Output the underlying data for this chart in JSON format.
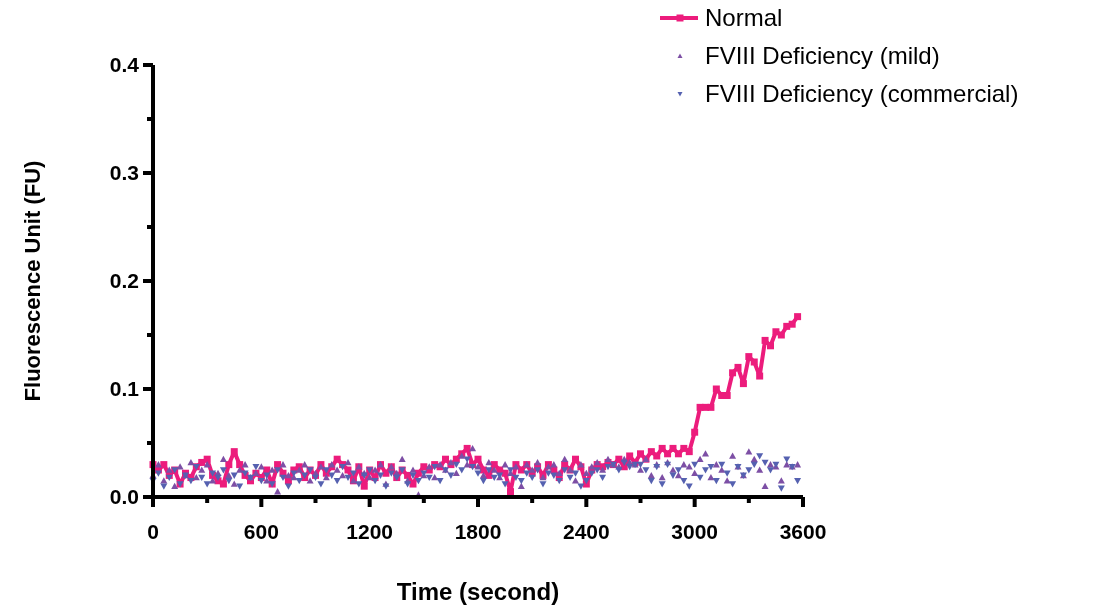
{
  "chart_data": {
    "type": "line",
    "xlabel": "Time (second)",
    "ylabel": "Fluorescence Unit (FU)",
    "xlim": [
      0,
      3600
    ],
    "ylim": [
      0,
      0.4
    ],
    "xticks": [
      0,
      {
        "value": 300,
        "label": null
      },
      600,
      {
        "value": 900,
        "label": null
      },
      1200,
      {
        "value": 1500,
        "label": null
      },
      1800,
      {
        "value": 2100,
        "label": null
      },
      2400,
      {
        "value": 2700,
        "label": null
      },
      3000,
      {
        "value": 3300,
        "label": null
      },
      3600
    ],
    "yticks": [
      {
        "value": 0,
        "label": "0.0"
      },
      {
        "value": 0.05,
        "label": null
      },
      0.1,
      {
        "value": 0.15,
        "label": null
      },
      0.2,
      {
        "value": 0.25,
        "label": null
      },
      0.3,
      {
        "value": 0.35,
        "label": null
      },
      0.4
    ],
    "grid": false,
    "legend": "top right",
    "x": [
      0,
      30,
      60,
      90,
      120,
      150,
      180,
      210,
      240,
      270,
      300,
      330,
      360,
      390,
      420,
      450,
      480,
      510,
      540,
      570,
      600,
      630,
      660,
      690,
      720,
      750,
      780,
      810,
      840,
      870,
      900,
      930,
      960,
      990,
      1020,
      1050,
      1080,
      1110,
      1140,
      1170,
      1200,
      1230,
      1260,
      1290,
      1320,
      1350,
      1380,
      1410,
      1440,
      1470,
      1500,
      1530,
      1560,
      1590,
      1620,
      1650,
      1680,
      1710,
      1740,
      1770,
      1800,
      1830,
      1860,
      1890,
      1920,
      1950,
      1980,
      2010,
      2040,
      2070,
      2100,
      2130,
      2160,
      2190,
      2220,
      2250,
      2280,
      2310,
      2340,
      2370,
      2400,
      2430,
      2460,
      2490,
      2520,
      2550,
      2580,
      2610,
      2640,
      2670,
      2700,
      2730,
      2760,
      2790,
      2820,
      2850,
      2880,
      2910,
      2940,
      2970,
      3000,
      3030,
      3060,
      3090,
      3120,
      3150,
      3180,
      3210,
      3240,
      3270,
      3300,
      3330,
      3360,
      3390,
      3420,
      3450,
      3480,
      3510,
      3540,
      3570
    ],
    "series": [
      {
        "name": "Normal",
        "marker": "square",
        "line_style": "solid",
        "color": "#ec1c7c",
        "values": [
          0.03,
          0.025,
          0.03,
          0.02,
          0.025,
          0.012,
          0.022,
          0.018,
          0.028,
          0.032,
          0.035,
          0.02,
          0.015,
          0.012,
          0.03,
          0.042,
          0.03,
          0.02,
          0.015,
          0.022,
          0.018,
          0.025,
          0.012,
          0.03,
          0.022,
          0.015,
          0.025,
          0.028,
          0.018,
          0.025,
          0.02,
          0.03,
          0.022,
          0.028,
          0.035,
          0.03,
          0.025,
          0.015,
          0.028,
          0.01,
          0.025,
          0.018,
          0.03,
          0.022,
          0.028,
          0.018,
          0.025,
          0.02,
          0.012,
          0.022,
          0.028,
          0.025,
          0.03,
          0.028,
          0.035,
          0.03,
          0.035,
          0.04,
          0.045,
          0.03,
          0.035,
          0.025,
          0.02,
          0.03,
          0.025,
          0.022,
          0.005,
          0.03,
          0.025,
          0.03,
          0.022,
          0.028,
          0.02,
          0.03,
          0.025,
          0.018,
          0.03,
          0.025,
          0.035,
          0.028,
          0.012,
          0.025,
          0.03,
          0.028,
          0.032,
          0.03,
          0.035,
          0.028,
          0.038,
          0.032,
          0.04,
          0.035,
          0.042,
          0.038,
          0.045,
          0.04,
          0.045,
          0.04,
          0.045,
          0.042,
          0.06,
          0.083,
          0.083,
          0.083,
          0.1,
          0.094,
          0.094,
          0.115,
          0.12,
          0.105,
          0.13,
          0.125,
          0.112,
          0.145,
          0.14,
          0.153,
          0.15,
          0.158,
          0.16,
          0.167
        ]
      },
      {
        "name": "FVIII Deficiency (mild)",
        "type": "scatter",
        "marker": "triangle",
        "color": "#7d4fa5",
        "values": [
          0.02,
          0.03,
          0.015,
          0.025,
          0.01,
          0.028,
          0.02,
          0.032,
          0.018,
          0.025,
          0.03,
          0.015,
          0.022,
          0.035,
          0.02,
          0.012,
          0.025,
          0.03,
          0.018,
          0.022,
          0.028,
          0.015,
          0.025,
          0.005,
          0.03,
          0.02,
          0.018,
          0.025,
          0.03,
          0.015,
          0.022,
          0.028,
          0.018,
          0.03,
          0.025,
          0.02,
          0.032,
          0.015,
          0.028,
          0.022,
          0.018,
          0.025,
          0.03,
          0.012,
          0.028,
          0.022,
          0.035,
          0.015,
          0.025,
          0.002,
          0.02,
          0.028,
          0.018,
          0.03,
          0.025,
          0.032,
          0.022,
          0.038,
          0.03,
          0.045,
          0.028,
          0.02,
          0.032,
          0.025,
          0.018,
          0.03,
          0.022,
          0.028,
          0.01,
          0.03,
          0.025,
          0.032,
          0.018,
          0.028,
          0.03,
          0.022,
          0.035,
          0.025,
          0.015,
          0.03,
          0.022,
          0.028,
          0.032,
          0.025,
          0.035,
          0.03,
          0.028,
          0.035,
          0.032,
          0.03,
          0.025,
          0.035,
          0.02,
          0.03,
          0.018,
          0.032,
          0.025,
          0.02,
          0.03,
          0.028,
          0.022,
          0.035,
          0.04,
          0.018,
          0.03,
          0.025,
          0.015,
          0.038,
          0.028,
          0.02,
          0.042,
          0.035,
          0.025,
          0.01,
          0.03,
          0.028,
          0.015,
          0.03,
          0.028,
          0.03
        ]
      },
      {
        "name": "FVIII Deficiency (commercial)",
        "type": "scatter",
        "marker": "triangle-down",
        "color": "#5561b0",
        "values": [
          0.015,
          0.022,
          0.01,
          0.018,
          0.025,
          0.012,
          0.02,
          0.015,
          0.028,
          0.018,
          0.012,
          0.022,
          0.018,
          0.025,
          0.015,
          0.02,
          0.01,
          0.022,
          0.018,
          0.028,
          0.015,
          0.02,
          0.012,
          0.025,
          0.018,
          0.01,
          0.022,
          0.015,
          0.02,
          0.025,
          0.018,
          0.012,
          0.025,
          0.02,
          0.015,
          0.028,
          0.018,
          0.022,
          0.012,
          0.02,
          0.025,
          0.015,
          0.02,
          0.01,
          0.022,
          0.018,
          0.025,
          0.012,
          0.02,
          0.015,
          0.022,
          0.018,
          0.028,
          0.015,
          0.025,
          0.02,
          0.03,
          0.025,
          0.035,
          0.028,
          0.022,
          0.015,
          0.025,
          0.018,
          0.02,
          0.012,
          0.025,
          0.018,
          0.015,
          0.022,
          0.018,
          0.025,
          0.012,
          0.022,
          0.02,
          0.015,
          0.025,
          0.018,
          0.022,
          0.01,
          0.015,
          0.022,
          0.025,
          0.018,
          0.028,
          0.03,
          0.025,
          0.032,
          0.028,
          0.03,
          0.03,
          0.025,
          0.015,
          0.028,
          0.012,
          0.03,
          0.02,
          0.025,
          0.015,
          0.01,
          0.03,
          0.018,
          0.025,
          0.028,
          0.015,
          0.03,
          0.022,
          0.012,
          0.028,
          0.02,
          0.025,
          0.03,
          0.038,
          0.032,
          0.025,
          0.03,
          0.008,
          0.035,
          0.028,
          0.015
        ]
      }
    ]
  }
}
